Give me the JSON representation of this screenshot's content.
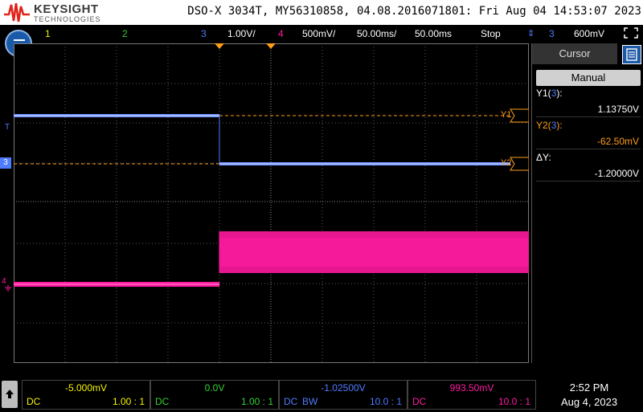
{
  "header": {
    "brand": "KEYSIGHT",
    "brand_sub": "TECHNOLOGIES",
    "title": "DSO-X 3034T, MY56310858, 04.08.2016071801: Fri Aug 04 14:53:07 2023"
  },
  "channel_bar": {
    "ch1": "1",
    "ch2": "2",
    "ch3": "3",
    "ch3_scale": "1.00V/",
    "ch4": "4",
    "ch4_scale": "500mV/",
    "timebase": "50.00ms/",
    "delay": "50.00ms",
    "run_state": "Stop",
    "trigger_source": "3",
    "trigger_level": "600mV"
  },
  "colors": {
    "ch1": "#f5f500",
    "ch2": "#35d035",
    "ch3": "#4f7cff",
    "ch4": "#ff1aa0",
    "cursor": "#ff9e1a",
    "grid": "#5a5a5a"
  },
  "screen": {
    "trigger_marker": "T",
    "ch3_marker": "3",
    "ch4_marker": "4",
    "y1_label": "Y1",
    "y2_label": "Y2"
  },
  "cursor_panel": {
    "tab_label": "Cursor",
    "mode": "Manual",
    "y1_label": "Y1(",
    "y1_ch": "3",
    "y1_suffix": "):",
    "y1_value": "1.13750V",
    "y2_label": "Y2(",
    "y2_ch": "3",
    "y2_suffix": "):",
    "y2_value": "-62.50mV",
    "dy_label": "ΔY:",
    "dy_value": "-1.20000V"
  },
  "channels": [
    {
      "offset": "-5.000mV",
      "coupling": "DC",
      "bw": "",
      "probe": "1.00 : 1"
    },
    {
      "offset": "0.0V",
      "coupling": "DC",
      "bw": "",
      "probe": "1.00 : 1"
    },
    {
      "offset": "-1.02500V",
      "coupling": "DC",
      "bw": "BW",
      "probe": "10.0 : 1"
    },
    {
      "offset": "993.50mV",
      "coupling": "DC",
      "bw": "",
      "probe": "10.0 : 1"
    }
  ],
  "clock": {
    "time": "2:52 PM",
    "date": "Aug 4, 2023"
  }
}
